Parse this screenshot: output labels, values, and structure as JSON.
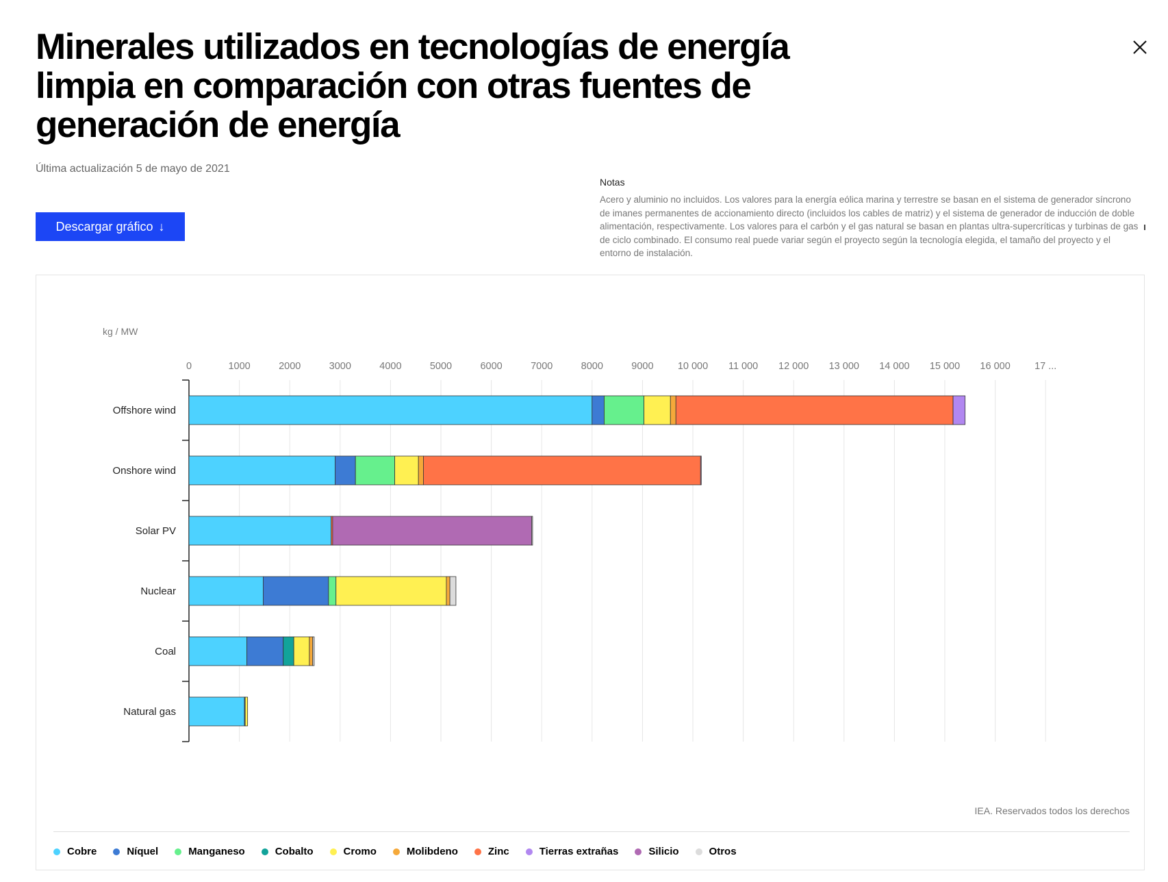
{
  "header": {
    "title": "Minerales utilizados en tecnologías de energía limpia en comparación con otras fuentes de generación de energía",
    "updated": "Última actualización 5 de mayo de 2021",
    "download_label": "Descargar gráfico",
    "download_icon": "arrow-down-icon",
    "close_icon": "close-icon"
  },
  "notes": {
    "heading": "Notas",
    "text": "Acero y aluminio no incluidos. Los valores para la energía eólica marina y terrestre se basan en el sistema de generador síncrono de imanes permanentes de accionamiento directo (incluidos los cables de matriz) y el sistema de generador de inducción de doble alimentación, respectivamente. Los valores para el carbón y el gas natural se basan en plantas ultra-supercríticas y turbinas de gas de ciclo combinado. El consumo real puede variar según el proyecto según la tecnología elegida, el tamaño del proyecto y el entorno de instalación."
  },
  "credit": "IEA. Reservados todos los derechos",
  "chart_data": {
    "type": "bar",
    "orientation": "horizontal",
    "stacked": true,
    "unit_label": "kg / MW",
    "xlim": [
      0,
      17000
    ],
    "x_ticks": [
      "0",
      "1000",
      "2000",
      "3000",
      "4000",
      "5000",
      "6000",
      "7000",
      "8000",
      "9000",
      "10 000",
      "11 000",
      "12 000",
      "13 000",
      "14 000",
      "15 000",
      "16 000",
      "17 ..."
    ],
    "grid": true,
    "legend_position": "bottom",
    "categories": [
      "Offshore wind",
      "Onshore wind",
      "Solar PV",
      "Nuclear",
      "Coal",
      "Natural gas"
    ],
    "series": [
      {
        "name": "Cobre",
        "color": "#4dd2ff",
        "values": [
          8000,
          2900,
          2822,
          1473,
          1150,
          1100
        ]
      },
      {
        "name": "Níquel",
        "color": "#3d7bd4",
        "values": [
          240,
          404,
          0,
          1297,
          721,
          16
        ]
      },
      {
        "name": "Manganeso",
        "color": "#66f08d",
        "values": [
          790,
          780,
          0,
          148,
          0,
          0
        ]
      },
      {
        "name": "Cobalto",
        "color": "#12a39a",
        "values": [
          0,
          0,
          0,
          0,
          210,
          0
        ]
      },
      {
        "name": "Cromo",
        "color": "#fff052",
        "values": [
          525,
          470,
          0,
          2190,
          308,
          48
        ]
      },
      {
        "name": "Molibdeno",
        "color": "#f5a93a",
        "values": [
          109,
          99,
          0,
          70,
          66,
          0
        ]
      },
      {
        "name": "Zinc",
        "color": "#ff7347",
        "values": [
          5500,
          5500,
          30,
          0,
          0,
          0
        ]
      },
      {
        "name": "Tierras extrañas",
        "color": "#b187f0",
        "values": [
          239,
          14,
          0,
          0,
          0,
          0
        ]
      },
      {
        "name": "Silicio",
        "color": "#b06ab3",
        "values": [
          0,
          0,
          3948,
          0,
          0,
          0
        ]
      },
      {
        "name": "Otros",
        "color": "#dcdcdc",
        "values": [
          0,
          0,
          20,
          120,
          30,
          0
        ]
      }
    ]
  }
}
